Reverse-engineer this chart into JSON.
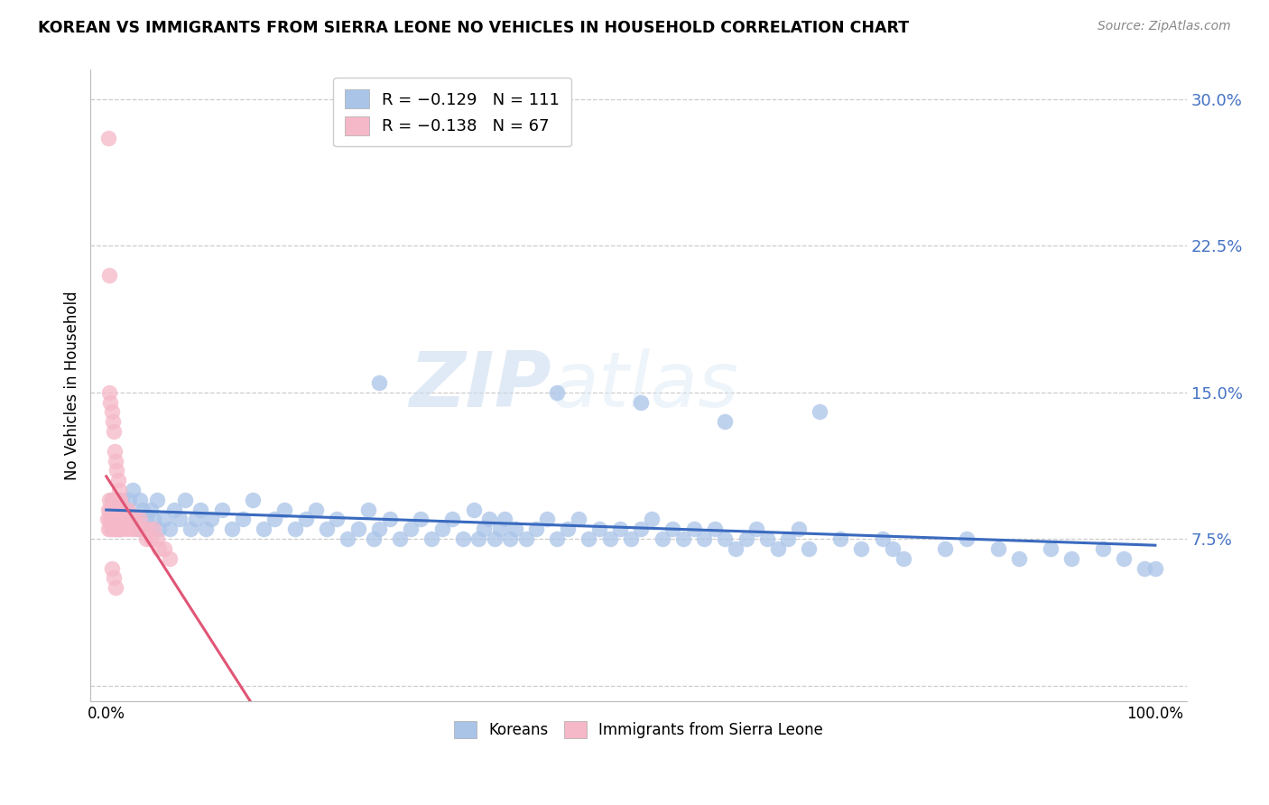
{
  "title": "KOREAN VS IMMIGRANTS FROM SIERRA LEONE NO VEHICLES IN HOUSEHOLD CORRELATION CHART",
  "source": "Source: ZipAtlas.com",
  "ylabel": "No Vehicles in Household",
  "korean_color": "#aac4e8",
  "sierra_leone_color": "#f5b8c8",
  "trend_korean_color": "#3a6abf",
  "trend_sierra_leone_color": "#e05575",
  "legend_korean_label": "R = −0.129   N = 111",
  "legend_sierra_leone_label": "R = −0.138   N = 67",
  "legend_bottom_korean": "Koreans",
  "legend_bottom_sierra": "Immigrants from Sierra Leone",
  "watermark_zip": "ZIP",
  "watermark_atlas": "atlas",
  "yticks": [
    0.0,
    0.075,
    0.15,
    0.225,
    0.3
  ],
  "ytick_labels": [
    "",
    "7.5%",
    "15.0%",
    "22.5%",
    "30.0%"
  ],
  "xtick_labels": [
    "0.0%",
    "",
    "",
    "",
    "100.0%"
  ],
  "korean_x": [
    0.005,
    0.008,
    0.01,
    0.012,
    0.015,
    0.018,
    0.02,
    0.022,
    0.025,
    0.028,
    0.03,
    0.032,
    0.035,
    0.038,
    0.04,
    0.042,
    0.045,
    0.048,
    0.05,
    0.055,
    0.06,
    0.065,
    0.07,
    0.075,
    0.08,
    0.085,
    0.09,
    0.095,
    0.1,
    0.11,
    0.12,
    0.13,
    0.14,
    0.15,
    0.16,
    0.17,
    0.18,
    0.19,
    0.2,
    0.21,
    0.22,
    0.23,
    0.24,
    0.25,
    0.255,
    0.26,
    0.27,
    0.28,
    0.29,
    0.3,
    0.31,
    0.32,
    0.33,
    0.34,
    0.35,
    0.355,
    0.36,
    0.365,
    0.37,
    0.375,
    0.38,
    0.385,
    0.39,
    0.4,
    0.41,
    0.42,
    0.43,
    0.44,
    0.45,
    0.46,
    0.47,
    0.48,
    0.49,
    0.5,
    0.51,
    0.52,
    0.53,
    0.54,
    0.55,
    0.56,
    0.57,
    0.58,
    0.59,
    0.6,
    0.61,
    0.62,
    0.63,
    0.64,
    0.65,
    0.66,
    0.67,
    0.7,
    0.72,
    0.74,
    0.75,
    0.76,
    0.8,
    0.82,
    0.85,
    0.87,
    0.9,
    0.92,
    0.95,
    0.97,
    0.99,
    1.0,
    0.26,
    0.43,
    0.51,
    0.59,
    0.68
  ],
  "korean_y": [
    0.095,
    0.085,
    0.09,
    0.08,
    0.095,
    0.085,
    0.09,
    0.095,
    0.1,
    0.085,
    0.08,
    0.095,
    0.09,
    0.085,
    0.08,
    0.09,
    0.085,
    0.095,
    0.08,
    0.085,
    0.08,
    0.09,
    0.085,
    0.095,
    0.08,
    0.085,
    0.09,
    0.08,
    0.085,
    0.09,
    0.08,
    0.085,
    0.095,
    0.08,
    0.085,
    0.09,
    0.08,
    0.085,
    0.09,
    0.08,
    0.085,
    0.075,
    0.08,
    0.09,
    0.075,
    0.08,
    0.085,
    0.075,
    0.08,
    0.085,
    0.075,
    0.08,
    0.085,
    0.075,
    0.09,
    0.075,
    0.08,
    0.085,
    0.075,
    0.08,
    0.085,
    0.075,
    0.08,
    0.075,
    0.08,
    0.085,
    0.075,
    0.08,
    0.085,
    0.075,
    0.08,
    0.075,
    0.08,
    0.075,
    0.08,
    0.085,
    0.075,
    0.08,
    0.075,
    0.08,
    0.075,
    0.08,
    0.075,
    0.07,
    0.075,
    0.08,
    0.075,
    0.07,
    0.075,
    0.08,
    0.07,
    0.075,
    0.07,
    0.075,
    0.07,
    0.065,
    0.07,
    0.075,
    0.07,
    0.065,
    0.07,
    0.065,
    0.07,
    0.065,
    0.06,
    0.06,
    0.155,
    0.15,
    0.145,
    0.135,
    0.14
  ],
  "sierra_x": [
    0.001,
    0.002,
    0.002,
    0.003,
    0.003,
    0.004,
    0.004,
    0.005,
    0.005,
    0.006,
    0.006,
    0.007,
    0.007,
    0.008,
    0.008,
    0.009,
    0.009,
    0.01,
    0.01,
    0.011,
    0.011,
    0.012,
    0.012,
    0.013,
    0.013,
    0.014,
    0.015,
    0.015,
    0.016,
    0.017,
    0.018,
    0.019,
    0.02,
    0.021,
    0.022,
    0.023,
    0.025,
    0.027,
    0.028,
    0.03,
    0.032,
    0.035,
    0.038,
    0.04,
    0.042,
    0.045,
    0.048,
    0.05,
    0.055,
    0.06,
    0.003,
    0.004,
    0.005,
    0.006,
    0.007,
    0.008,
    0.009,
    0.01,
    0.011,
    0.012,
    0.013,
    0.015,
    0.002,
    0.003,
    0.005,
    0.007,
    0.009
  ],
  "sierra_y": [
    0.085,
    0.09,
    0.08,
    0.095,
    0.085,
    0.09,
    0.08,
    0.095,
    0.085,
    0.09,
    0.08,
    0.085,
    0.095,
    0.085,
    0.08,
    0.09,
    0.085,
    0.08,
    0.095,
    0.085,
    0.08,
    0.09,
    0.085,
    0.08,
    0.095,
    0.085,
    0.09,
    0.08,
    0.085,
    0.09,
    0.085,
    0.08,
    0.085,
    0.09,
    0.085,
    0.08,
    0.085,
    0.08,
    0.085,
    0.08,
    0.085,
    0.08,
    0.075,
    0.08,
    0.075,
    0.08,
    0.075,
    0.07,
    0.07,
    0.065,
    0.15,
    0.145,
    0.14,
    0.135,
    0.13,
    0.12,
    0.115,
    0.11,
    0.105,
    0.1,
    0.095,
    0.09,
    0.28,
    0.21,
    0.06,
    0.055,
    0.05
  ]
}
